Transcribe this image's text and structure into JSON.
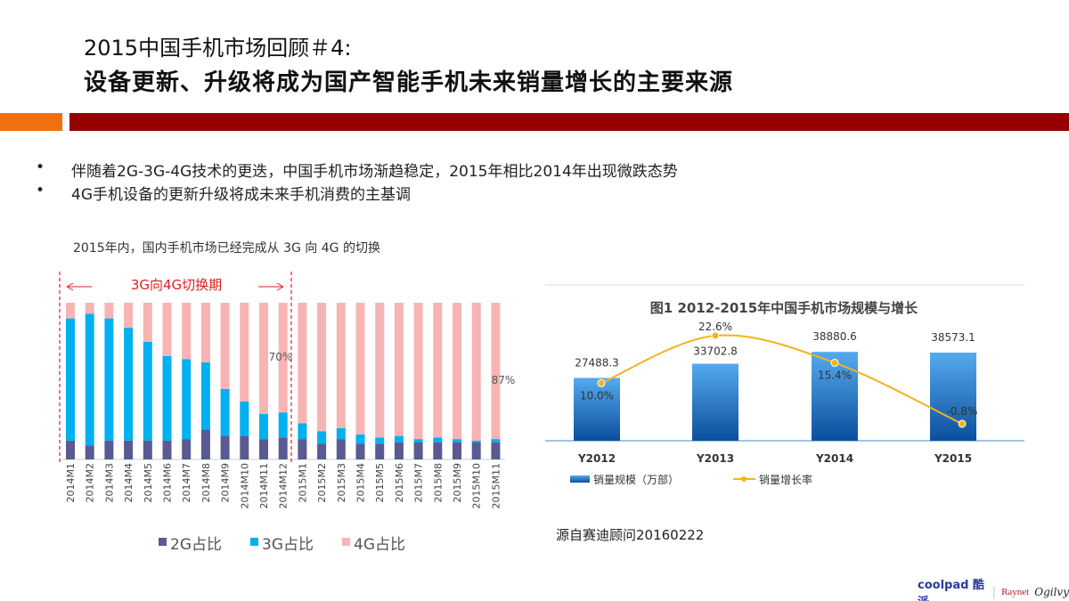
{
  "header": {
    "title_line1": "2015中国手机市场回顾＃4:",
    "title_line2": "设备更新、升级将成为国产智能手机未来销量增长的主要来源"
  },
  "bullets": [
    "伴随着2G-3G-4G技术的更迭，中国手机市场渐趋稳定，2015年相比2014年出现微跌态势",
    "4G手机设备的更新升级将成未来手机消费的主基调"
  ],
  "left_caption": "2015年内，国内手机市场已经完成从 3G 向 4G 的切换",
  "source": "源自赛迪顾问20160222",
  "logo": {
    "brand": "coolpad 酷派",
    "partner": "Raynet",
    "partner2": "Ogilvy"
  },
  "colors": {
    "2g": "#5a5a92",
    "3g": "#00b0f0",
    "4g": "#f8b4b4",
    "accent": "#e02020",
    "line": "#f5b21b",
    "bar_top": "#55aaee",
    "bar_bottom": "#0b4f9c"
  },
  "chart_data": [
    {
      "type": "bar",
      "stacked": true,
      "annotation": "3G向4G切换期",
      "data_labels": [
        "70%",
        "87%"
      ],
      "categories": [
        "2014M1",
        "2014M2",
        "2014M3",
        "2014M4",
        "2014M5",
        "2014M6",
        "2014M7",
        "2014M8",
        "2014M9",
        "2014M10",
        "2014M11",
        "2014M12",
        "2015M1",
        "2015M2",
        "2015M3",
        "2015M4",
        "2015M5",
        "2015M6",
        "2015M7",
        "2015M8",
        "2015M9",
        "2015M10",
        "2015M11"
      ],
      "series": [
        {
          "name": "2G占比",
          "values": [
            12,
            9,
            12,
            12,
            12,
            12,
            13,
            19,
            15,
            15,
            13,
            14,
            13,
            10,
            13,
            10,
            10,
            11,
            11,
            11,
            11,
            11,
            11
          ]
        },
        {
          "name": "3G占比",
          "values": [
            78,
            84,
            78,
            72,
            63,
            54,
            51,
            43,
            30,
            22,
            16,
            16,
            10,
            8,
            7,
            6,
            4,
            4,
            2,
            3,
            2,
            1,
            2
          ]
        },
        {
          "name": "4G占比",
          "values": [
            10,
            7,
            10,
            16,
            25,
            34,
            36,
            38,
            55,
            63,
            71,
            70,
            77,
            82,
            80,
            84,
            86,
            85,
            87,
            86,
            87,
            88,
            87
          ]
        }
      ],
      "ylim": [
        0,
        100
      ],
      "legend": "bottom"
    },
    {
      "type": "bar+line",
      "title": "图1   2012-2015年中国手机市场规模与增长",
      "categories": [
        "Y2012",
        "Y2013",
        "Y2014",
        "Y2015"
      ],
      "series": [
        {
          "name": "销量规模（万部）",
          "type": "bar",
          "values": [
            27488.3,
            33702.8,
            38880.6,
            38573.1
          ],
          "labels": [
            "27488.3",
            "33702.8",
            "38880.6",
            "38573.1"
          ]
        },
        {
          "name": "销量增长率",
          "type": "line",
          "values": [
            10.0,
            22.6,
            15.4,
            -0.8
          ],
          "labels": [
            "10.0%",
            "22.6%",
            "15.4%",
            "-0.8%"
          ]
        }
      ],
      "legend": "bottom"
    }
  ]
}
